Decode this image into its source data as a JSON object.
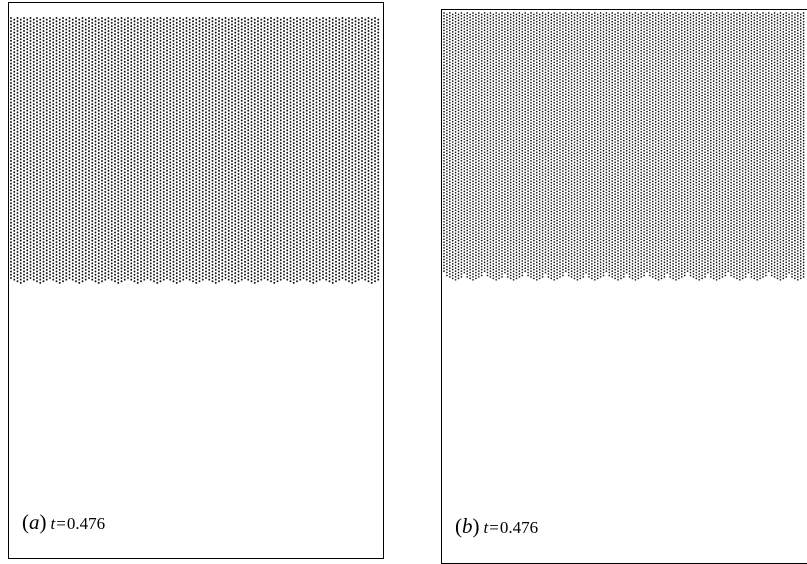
{
  "panels": [
    {
      "id": "a",
      "label_letter": "a",
      "time_symbol": "t",
      "equals": "=",
      "time_value": "0.476"
    },
    {
      "id": "b",
      "label_letter": "b",
      "time_symbol": "t",
      "equals": "=",
      "time_value": "0.476"
    }
  ],
  "colors": {
    "particle": "#111111",
    "frame": "#000000",
    "background": "#ffffff"
  }
}
